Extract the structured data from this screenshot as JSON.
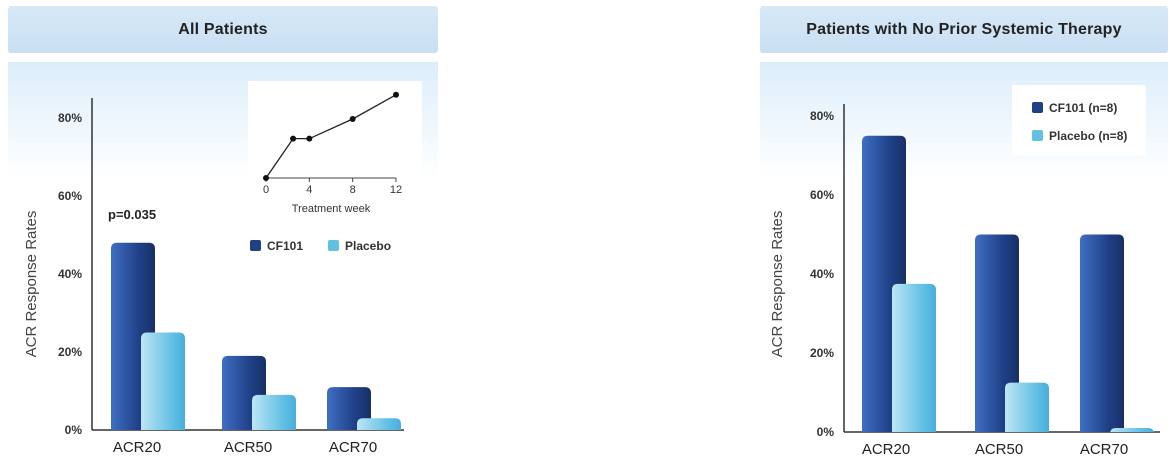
{
  "colors": {
    "cf101_dark": "#1f3f86",
    "cf101_light": "#3f6fc3",
    "placebo_dark": "#62c0e4",
    "placebo_light": "#bde6f6",
    "axis": "#333333"
  },
  "chart_data": [
    {
      "type": "bar",
      "title": "All Patients",
      "ylabel": "ACR Response Rates",
      "ylim": [
        0,
        80
      ],
      "yticks": [
        "0%",
        "20%",
        "40%",
        "60%",
        "80%"
      ],
      "categories": [
        "ACR20",
        "ACR50",
        "ACR70"
      ],
      "series": [
        {
          "name": "CF101",
          "values": [
            48,
            19,
            11
          ]
        },
        {
          "name": "Placebo",
          "values": [
            25,
            9,
            3
          ]
        }
      ],
      "annotation": "p=0.035",
      "legend_placement": "top-right",
      "inset": {
        "type": "line",
        "xlabel": "Treatment week",
        "xticks": [
          "0",
          "4",
          "8",
          "12"
        ],
        "x": [
          0,
          2.5,
          4,
          8,
          12
        ],
        "y": [
          0,
          52,
          52,
          78,
          110
        ],
        "ylim": [
          0,
          115
        ],
        "xlim": [
          0,
          12
        ]
      }
    },
    {
      "type": "bar",
      "title": "Patients with No Prior Systemic Therapy",
      "ylabel": "ACR Response Rates",
      "ylim": [
        0,
        80
      ],
      "yticks": [
        "0%",
        "20%",
        "40%",
        "60%",
        "80%"
      ],
      "categories": [
        "ACR20",
        "ACR50",
        "ACR70"
      ],
      "series": [
        {
          "name": "CF101 (n=8)",
          "values": [
            75,
            50,
            50
          ]
        },
        {
          "name": "Placebo (n=8)",
          "values": [
            37.5,
            12.5,
            1
          ]
        }
      ],
      "legend_placement": "top-right"
    }
  ]
}
